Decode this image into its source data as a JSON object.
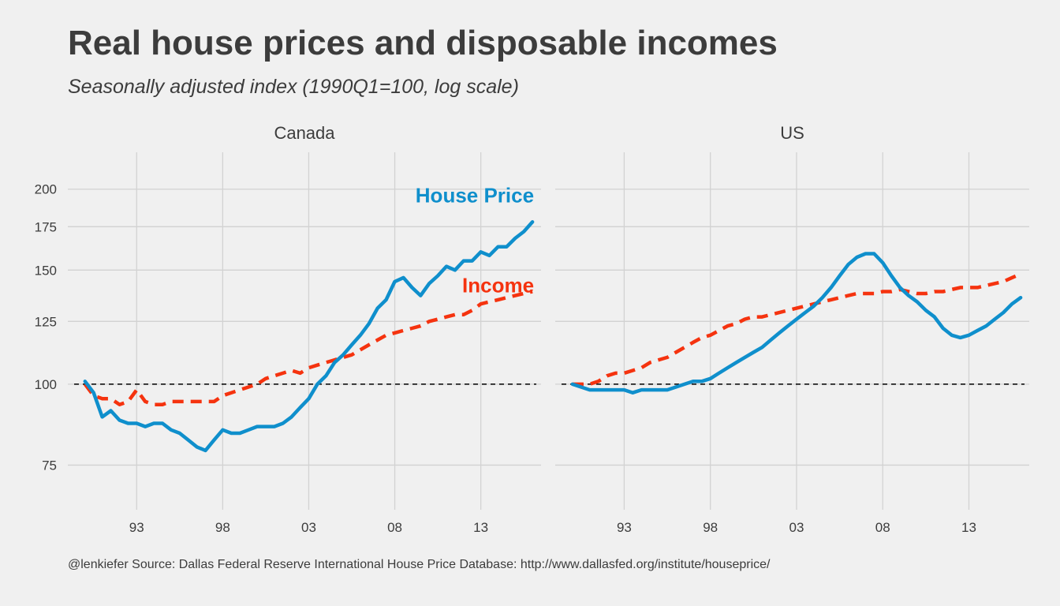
{
  "title": "Real house prices and disposable incomes",
  "subtitle": "Seasonally adjusted index (1990Q1=100, log scale)",
  "caption": "@lenkiefer Source: Dallas Federal Reserve International House Price Database: http://www.dallasfed.org/institute/houseprice/",
  "colors": {
    "house_price": "#0f8fcc",
    "income": "#f5330f",
    "background": "#f0f0f0"
  },
  "chart_data": {
    "type": "line",
    "scale_y": "log",
    "grid": true,
    "reference_line": 100,
    "xlim": [
      1989.0,
      2016.5
    ],
    "ylim": [
      64,
      228
    ],
    "x_ticks": [
      1993,
      1998,
      2003,
      2008,
      2013
    ],
    "x_tick_labels": [
      "93",
      "98",
      "03",
      "08",
      "13"
    ],
    "y_ticks": [
      75,
      100,
      125,
      150,
      175,
      200
    ],
    "y_tick_labels": [
      "75",
      "100",
      "125",
      "150",
      "175",
      "200"
    ],
    "panels": [
      {
        "name": "Canada",
        "series": [
          {
            "name": "House Price",
            "x": [
              1990.0,
              1990.5,
              1991.0,
              1991.5,
              1992.0,
              1992.5,
              1993.0,
              1993.5,
              1994.0,
              1994.5,
              1995.0,
              1995.5,
              1996.0,
              1996.5,
              1997.0,
              1997.5,
              1998.0,
              1998.5,
              1999.0,
              1999.5,
              2000.0,
              2000.5,
              2001.0,
              2001.5,
              2002.0,
              2002.5,
              2003.0,
              2003.5,
              2004.0,
              2004.5,
              2005.0,
              2005.5,
              2006.0,
              2006.5,
              2007.0,
              2007.5,
              2008.0,
              2008.5,
              2009.0,
              2009.5,
              2010.0,
              2010.5,
              2011.0,
              2011.5,
              2012.0,
              2012.5,
              2013.0,
              2013.5,
              2014.0,
              2014.5,
              2015.0,
              2015.5,
              2016.0
            ],
            "values": [
              101,
              97,
              89,
              91,
              88,
              87,
              87,
              86,
              87,
              87,
              85,
              84,
              82,
              80,
              79,
              82,
              85,
              84,
              84,
              85,
              86,
              86,
              86,
              87,
              89,
              92,
              95,
              100,
              103,
              108,
              111,
              115,
              119,
              124,
              131,
              135,
              144,
              146,
              141,
              137,
              143,
              147,
              152,
              150,
              155,
              155,
              160,
              158,
              163,
              163,
              168,
              172,
              178
            ]
          },
          {
            "name": "Income",
            "x": [
              1990.0,
              1990.5,
              1991.0,
              1991.5,
              1992.0,
              1992.5,
              1993.0,
              1993.5,
              1994.0,
              1994.5,
              1995.0,
              1995.5,
              1996.0,
              1996.5,
              1997.0,
              1997.5,
              1998.0,
              1998.5,
              1999.0,
              1999.5,
              2000.0,
              2000.5,
              2001.0,
              2001.5,
              2002.0,
              2002.5,
              2003.0,
              2003.5,
              2004.0,
              2004.5,
              2005.0,
              2005.5,
              2006.0,
              2006.5,
              2007.0,
              2007.5,
              2008.0,
              2008.5,
              2009.0,
              2009.5,
              2010.0,
              2010.5,
              2011.0,
              2011.5,
              2012.0,
              2012.5,
              2013.0,
              2013.5,
              2014.0,
              2014.5,
              2015.0,
              2015.5,
              2016.0
            ],
            "values": [
              100,
              96,
              95,
              95,
              93,
              94,
              98,
              94,
              93,
              93,
              94,
              94,
              94,
              94,
              94,
              94,
              96,
              97,
              98,
              99,
              100,
              102,
              103,
              104,
              105,
              104,
              106,
              107,
              108,
              109,
              110,
              111,
              113,
              115,
              117,
              119,
              120,
              121,
              122,
              123,
              125,
              126,
              127,
              128,
              128,
              130,
              133,
              134,
              135,
              136,
              137,
              138,
              139
            ]
          }
        ],
        "annotations": [
          {
            "label": "House Price",
            "series": "House Price"
          },
          {
            "label": "Income",
            "series": "Income"
          }
        ]
      },
      {
        "name": "US",
        "series": [
          {
            "name": "House Price",
            "x": [
              1990.0,
              1990.5,
              1991.0,
              1991.5,
              1992.0,
              1992.5,
              1993.0,
              1993.5,
              1994.0,
              1994.5,
              1995.0,
              1995.5,
              1996.0,
              1996.5,
              1997.0,
              1997.5,
              1998.0,
              1998.5,
              1999.0,
              1999.5,
              2000.0,
              2000.5,
              2001.0,
              2001.5,
              2002.0,
              2002.5,
              2003.0,
              2003.5,
              2004.0,
              2004.5,
              2005.0,
              2005.5,
              2006.0,
              2006.5,
              2007.0,
              2007.5,
              2008.0,
              2008.5,
              2009.0,
              2009.5,
              2010.0,
              2010.5,
              2011.0,
              2011.5,
              2012.0,
              2012.5,
              2013.0,
              2013.5,
              2014.0,
              2014.5,
              2015.0,
              2015.5,
              2016.0
            ],
            "values": [
              100,
              99,
              98,
              98,
              98,
              98,
              98,
              97,
              98,
              98,
              98,
              98,
              99,
              100,
              101,
              101,
              102,
              104,
              106,
              108,
              110,
              112,
              114,
              117,
              120,
              123,
              126,
              129,
              132,
              136,
              141,
              147,
              153,
              157,
              159,
              159,
              154,
              147,
              141,
              137,
              134,
              130,
              127,
              122,
              119,
              118,
              119,
              121,
              123,
              126,
              129,
              133,
              136
            ]
          },
          {
            "name": "Income",
            "x": [
              1990.0,
              1990.5,
              1991.0,
              1991.5,
              1992.0,
              1992.5,
              1993.0,
              1993.5,
              1994.0,
              1994.5,
              1995.0,
              1995.5,
              1996.0,
              1996.5,
              1997.0,
              1997.5,
              1998.0,
              1998.5,
              1999.0,
              1999.5,
              2000.0,
              2000.5,
              2001.0,
              2001.5,
              2002.0,
              2002.5,
              2003.0,
              2003.5,
              2004.0,
              2004.5,
              2005.0,
              2005.5,
              2006.0,
              2006.5,
              2007.0,
              2007.5,
              2008.0,
              2008.5,
              2009.0,
              2009.5,
              2010.0,
              2010.5,
              2011.0,
              2011.5,
              2012.0,
              2012.5,
              2013.0,
              2013.5,
              2014.0,
              2014.5,
              2015.0,
              2015.5,
              2016.0
            ],
            "values": [
              100,
              100,
              100,
              101,
              103,
              104,
              104,
              105,
              106,
              108,
              109,
              110,
              112,
              114,
              116,
              118,
              119,
              121,
              123,
              124,
              126,
              127,
              127,
              128,
              129,
              130,
              131,
              132,
              133,
              134,
              135,
              136,
              137,
              138,
              138,
              138,
              139,
              139,
              140,
              139,
              138,
              138,
              139,
              139,
              140,
              141,
              141,
              141,
              142,
              143,
              144,
              146,
              148
            ]
          }
        ],
        "annotations": []
      }
    ]
  }
}
